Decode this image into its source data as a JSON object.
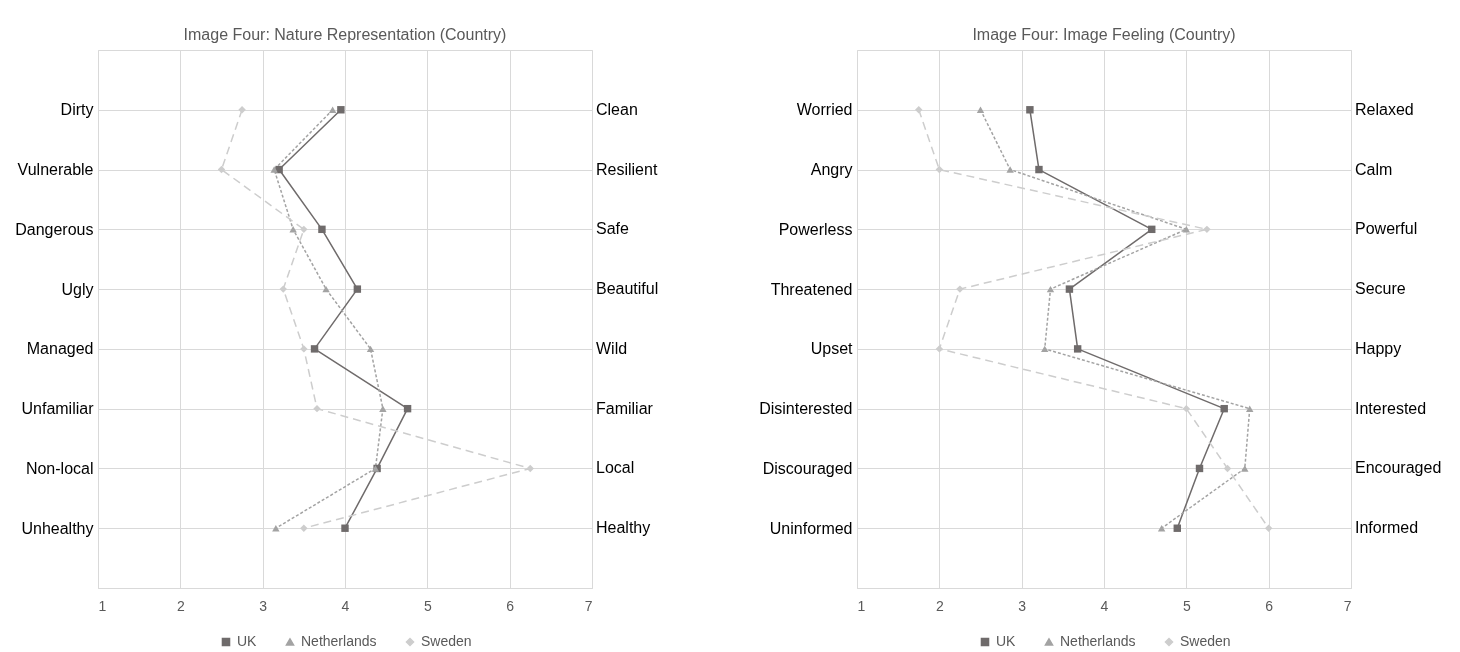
{
  "chart_data": [
    {
      "type": "line",
      "title": "Image Four: Nature Representation (Country)",
      "orientation": "horizontal",
      "categories": [
        "Dirty",
        "Vulnerable",
        "Dangerous",
        "Ugly",
        "Managed",
        "Unfamiliar",
        "Non-local",
        "Unhealthy"
      ],
      "y2_categories": [
        "Clean",
        "Resilient",
        "Safe",
        "Beautiful",
        "Wild",
        "Familiar",
        "Local",
        "Healthy"
      ],
      "xlim": [
        1,
        7
      ],
      "xticks": [
        1,
        2,
        3,
        4,
        5,
        6,
        7
      ],
      "grid": true,
      "legend": "bottom",
      "series": [
        {
          "name": "UK",
          "color": "#6f6b6b",
          "marker": "square",
          "line_style": "solid",
          "values": [
            3.95,
            3.2,
            3.72,
            4.15,
            3.63,
            4.76,
            4.39,
            4.0
          ]
        },
        {
          "name": "Netherlands",
          "color": "#a3a3a3",
          "marker": "triangle",
          "line_style": "dotted",
          "values": [
            3.85,
            3.14,
            3.37,
            3.77,
            4.31,
            4.46,
            4.37,
            3.16
          ]
        },
        {
          "name": "Sweden",
          "color": "#cdcdcd",
          "marker": "diamond",
          "line_style": "dashed",
          "values": [
            2.75,
            2.5,
            3.5,
            3.25,
            3.5,
            3.66,
            6.25,
            3.5
          ]
        }
      ]
    },
    {
      "type": "line",
      "title": "Image Four: Image Feeling (Country)",
      "orientation": "horizontal",
      "categories": [
        "Worried",
        "Angry",
        "Powerless",
        "Threatened",
        "Upset",
        "Disinterested",
        "Discouraged",
        "Uninformed"
      ],
      "y2_categories": [
        "Relaxed",
        "Calm",
        "Powerful",
        "Secure",
        "Happy",
        "Interested",
        "Encouraged",
        "Informed"
      ],
      "xlim": [
        1,
        7
      ],
      "xticks": [
        1,
        2,
        3,
        4,
        5,
        6,
        7
      ],
      "grid": true,
      "legend": "bottom",
      "series": [
        {
          "name": "UK",
          "color": "#6f6b6b",
          "marker": "square",
          "line_style": "solid",
          "values": [
            3.1,
            3.21,
            4.58,
            3.58,
            3.68,
            5.46,
            5.16,
            4.89
          ]
        },
        {
          "name": "Netherlands",
          "color": "#a3a3a3",
          "marker": "triangle",
          "line_style": "dotted",
          "values": [
            2.5,
            2.86,
            5.0,
            3.35,
            3.28,
            5.77,
            5.71,
            4.7
          ]
        },
        {
          "name": "Sweden",
          "color": "#cdcdcd",
          "marker": "diamond",
          "line_style": "dashed",
          "values": [
            1.75,
            2.0,
            5.25,
            2.25,
            2.0,
            5.0,
            5.5,
            6.0
          ]
        }
      ]
    }
  ]
}
